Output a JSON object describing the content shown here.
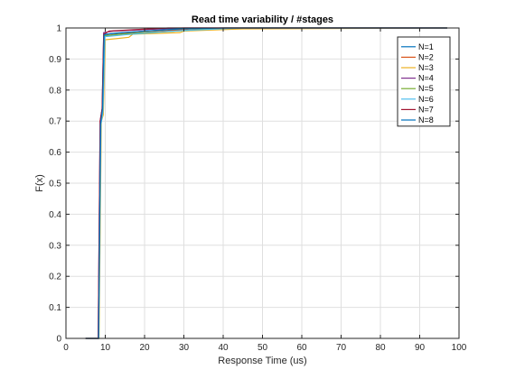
{
  "chart_data": {
    "type": "line",
    "title": "Read time variability / #stages",
    "xlabel": "Response Time (us)",
    "ylabel": "F(x)",
    "xlim": [
      0,
      100
    ],
    "ylim": [
      0,
      1
    ],
    "xticks": [
      "0",
      "10",
      "20",
      "30",
      "40",
      "50",
      "60",
      "70",
      "80",
      "90",
      "100"
    ],
    "yticks": [
      "0",
      "0.1",
      "0.2",
      "0.3",
      "0.4",
      "0.5",
      "0.6",
      "0.7",
      "0.8",
      "0.9",
      "1"
    ],
    "grid": true,
    "legend_position": "top-right",
    "series": [
      {
        "name": "N=1",
        "color": "#0072bd",
        "points": [
          [
            5,
            0
          ],
          [
            8.3,
            0
          ],
          [
            8.8,
            0.69
          ],
          [
            9.3,
            0.74
          ],
          [
            9.8,
            0.98
          ],
          [
            12,
            0.982
          ],
          [
            20,
            0.99
          ],
          [
            30,
            0.997
          ],
          [
            50,
            1
          ],
          [
            97,
            1
          ]
        ]
      },
      {
        "name": "N=2",
        "color": "#d95319",
        "points": [
          [
            5,
            0
          ],
          [
            8.3,
            0
          ],
          [
            8.8,
            0.69
          ],
          [
            9.3,
            0.73
          ],
          [
            9.8,
            0.975
          ],
          [
            15,
            0.982
          ],
          [
            25,
            0.99
          ],
          [
            32,
            0.997
          ],
          [
            55,
            1
          ],
          [
            97,
            1
          ]
        ]
      },
      {
        "name": "N=3",
        "color": "#edb120",
        "points": [
          [
            5,
            0
          ],
          [
            8.4,
            0
          ],
          [
            9.0,
            0.7
          ],
          [
            9.5,
            0.72
          ],
          [
            10.0,
            0.962
          ],
          [
            16,
            0.97
          ],
          [
            17,
            0.98
          ],
          [
            29,
            0.985
          ],
          [
            30,
            0.99
          ],
          [
            45,
            0.997
          ],
          [
            97,
            1
          ]
        ]
      },
      {
        "name": "N=4",
        "color": "#7e2f8e",
        "points": [
          [
            5,
            0
          ],
          [
            8.2,
            0
          ],
          [
            8.7,
            0.7
          ],
          [
            9.2,
            0.74
          ],
          [
            9.6,
            0.985
          ],
          [
            12,
            0.99
          ],
          [
            20,
            0.995
          ],
          [
            30,
            1
          ],
          [
            97,
            1
          ]
        ]
      },
      {
        "name": "N=5",
        "color": "#77ac30",
        "points": [
          [
            5,
            0
          ],
          [
            8.3,
            0
          ],
          [
            8.8,
            0.69
          ],
          [
            9.3,
            0.735
          ],
          [
            9.8,
            0.975
          ],
          [
            14,
            0.98
          ],
          [
            20,
            0.985
          ],
          [
            28,
            0.99
          ],
          [
            40,
            1
          ],
          [
            97,
            1
          ]
        ]
      },
      {
        "name": "N=6",
        "color": "#4dbeee",
        "points": [
          [
            5,
            0
          ],
          [
            8.3,
            0
          ],
          [
            8.9,
            0.69
          ],
          [
            9.4,
            0.73
          ],
          [
            9.9,
            0.972
          ],
          [
            15,
            0.978
          ],
          [
            22,
            0.985
          ],
          [
            30,
            0.992
          ],
          [
            45,
            1
          ],
          [
            97,
            1
          ]
        ]
      },
      {
        "name": "N=7",
        "color": "#a2142f",
        "points": [
          [
            5,
            0
          ],
          [
            8.2,
            0
          ],
          [
            8.7,
            0.7
          ],
          [
            9.2,
            0.74
          ],
          [
            9.6,
            0.98
          ],
          [
            11,
            0.99
          ],
          [
            18,
            0.995
          ],
          [
            26,
            1
          ],
          [
            97,
            1
          ]
        ]
      },
      {
        "name": "N=8",
        "color": "#0072bd",
        "points": [
          [
            5,
            0
          ],
          [
            8.3,
            0
          ],
          [
            8.8,
            0.69
          ],
          [
            9.3,
            0.74
          ],
          [
            9.7,
            0.978
          ],
          [
            12,
            0.983
          ],
          [
            20,
            0.99
          ],
          [
            29,
            0.997
          ],
          [
            40,
            1
          ],
          [
            97,
            1
          ]
        ]
      }
    ]
  }
}
